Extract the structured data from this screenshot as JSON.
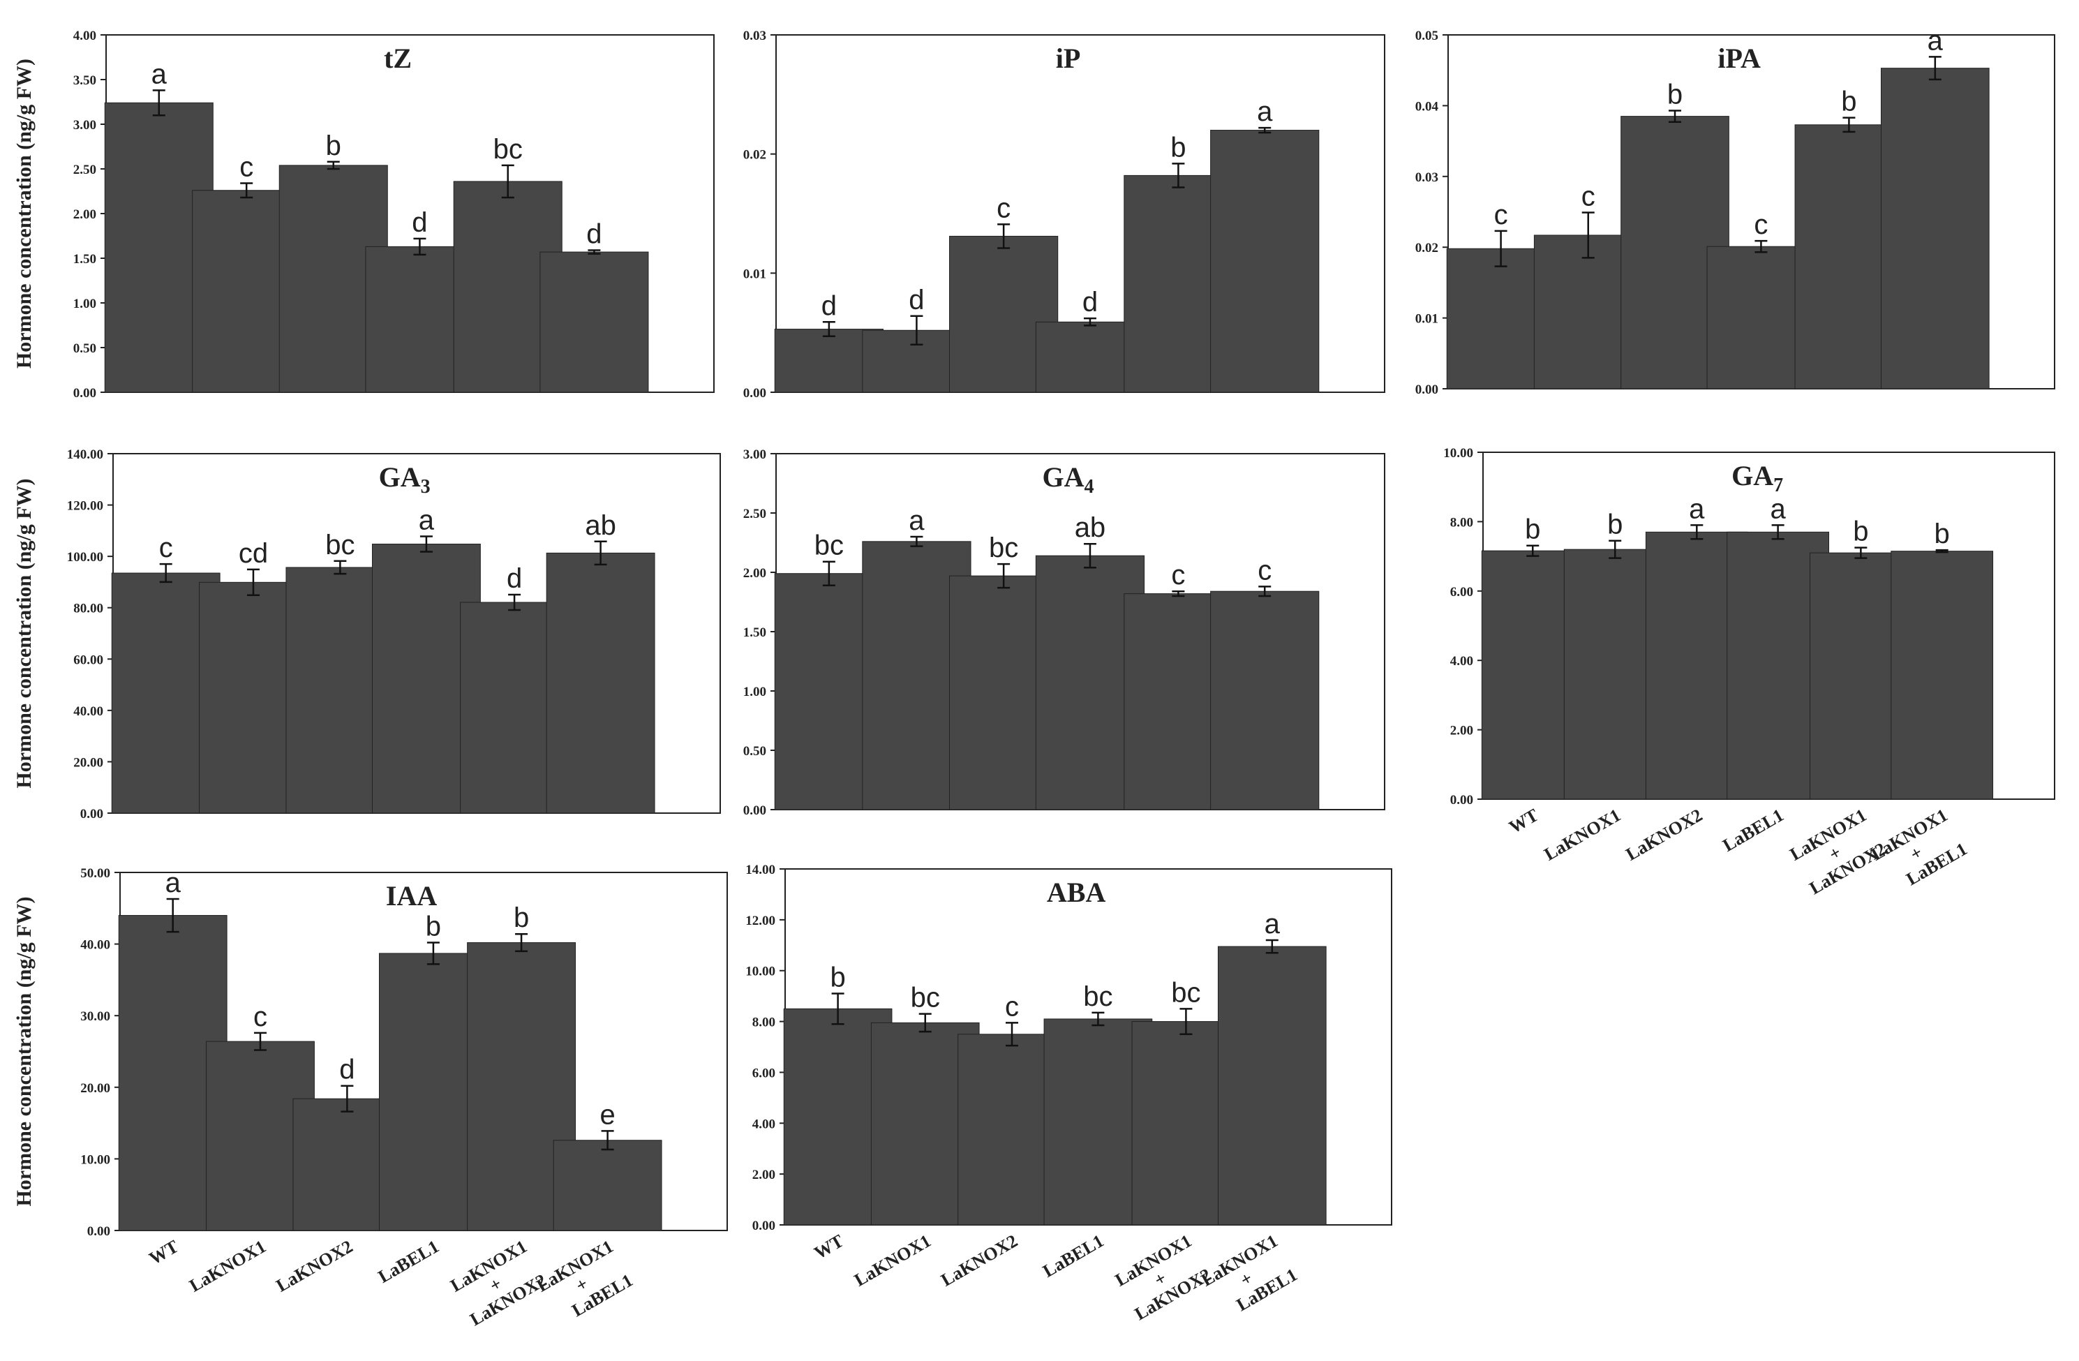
{
  "colors": {
    "bar": "#474747",
    "axis": "#222222",
    "background": "#ffffff"
  },
  "y_axis_label": "Hormone concentration (ng/g FW)",
  "categories": [
    [
      "WT"
    ],
    [
      "LaKNOX1"
    ],
    [
      "LaKNOX2"
    ],
    [
      "LaBEL1"
    ],
    [
      "LaKNOX1",
      "+",
      "LaKNOX2"
    ],
    [
      "LaKNOX1",
      "+",
      "LaBEL1"
    ]
  ],
  "chart_data": [
    {
      "type": "bar",
      "title": "tZ",
      "ylim": [
        0,
        4
      ],
      "yticks": [
        "0.00",
        "0.50",
        "1.00",
        "1.50",
        "2.00",
        "2.50",
        "3.00",
        "3.50",
        "4.00"
      ],
      "values": [
        3.24,
        2.26,
        2.54,
        1.63,
        2.36,
        1.57
      ],
      "errors": [
        0.14,
        0.08,
        0.04,
        0.09,
        0.18,
        0.02
      ],
      "letters": [
        "a",
        "c",
        "b",
        "d",
        "bc",
        "d"
      ],
      "ylabel": "Hormone concentration (ng/g FW)"
    },
    {
      "type": "bar",
      "title": "iP",
      "ylim": [
        0,
        0.03
      ],
      "yticks": [
        "0.00",
        "0.01",
        "0.02",
        "0.03"
      ],
      "values": [
        0.0053,
        0.0052,
        0.0131,
        0.0059,
        0.0182,
        0.022
      ],
      "errors": [
        0.0006,
        0.0012,
        0.001,
        0.0003,
        0.001,
        0.0002
      ],
      "letters": [
        "d",
        "d",
        "c",
        "d",
        "b",
        "a"
      ]
    },
    {
      "type": "bar",
      "title": "iPA",
      "ylim": [
        0,
        0.05
      ],
      "yticks": [
        "0.00",
        "0.01",
        "0.02",
        "0.03",
        "0.04",
        "0.05"
      ],
      "values": [
        0.0198,
        0.0217,
        0.0385,
        0.0201,
        0.0373,
        0.0453
      ],
      "errors": [
        0.0025,
        0.0032,
        0.0008,
        0.0008,
        0.001,
        0.0016
      ],
      "letters": [
        "c",
        "c",
        "b",
        "c",
        "b",
        "a"
      ]
    },
    {
      "type": "bar",
      "title": "GA3",
      "ylim": [
        0,
        140
      ],
      "yticks": [
        "0.00",
        "20.00",
        "40.00",
        "60.00",
        "80.00",
        "100.00",
        "120.00",
        "140.00"
      ],
      "values": [
        93.5,
        89.9,
        95.7,
        104.8,
        82.1,
        101.3
      ],
      "errors": [
        3.5,
        5.0,
        2.5,
        3.0,
        3.0,
        4.5
      ],
      "letters": [
        "c",
        "cd",
        "bc",
        "a",
        "d",
        "ab"
      ],
      "ylabel": "Hormone concentration (ng/g FW)"
    },
    {
      "type": "bar",
      "title": "GA4",
      "ylim": [
        0,
        3
      ],
      "yticks": [
        "0.00",
        "0.50",
        "1.00",
        "1.50",
        "2.00",
        "2.50",
        "3.00"
      ],
      "values": [
        1.99,
        2.26,
        1.97,
        2.14,
        1.82,
        1.84
      ],
      "errors": [
        0.1,
        0.04,
        0.1,
        0.1,
        0.02,
        0.04
      ],
      "letters": [
        "bc",
        "a",
        "bc",
        "ab",
        "c",
        "c"
      ]
    },
    {
      "type": "bar",
      "title": "GA7",
      "ylim": [
        0,
        10
      ],
      "yticks": [
        "0.00",
        "2.00",
        "4.00",
        "6.00",
        "8.00",
        "10.00"
      ],
      "values": [
        7.16,
        7.2,
        7.7,
        7.7,
        7.1,
        7.15
      ],
      "errors": [
        0.15,
        0.25,
        0.2,
        0.2,
        0.15,
        0.03
      ],
      "letters": [
        "b",
        "b",
        "a",
        "a",
        "b",
        "b"
      ]
    },
    {
      "type": "bar",
      "title": "IAA",
      "ylim": [
        0,
        50
      ],
      "yticks": [
        "0.00",
        "10.00",
        "20.00",
        "30.00",
        "40.00",
        "50.00"
      ],
      "values": [
        44.0,
        26.4,
        18.4,
        38.7,
        40.2,
        12.6
      ],
      "errors": [
        2.3,
        1.2,
        1.8,
        1.5,
        1.2,
        1.3
      ],
      "letters": [
        "a",
        "c",
        "d",
        "b",
        "b",
        "e"
      ],
      "ylabel": "Hormone concentration (ng/g FW)"
    },
    {
      "type": "bar",
      "title": "ABA",
      "ylim": [
        0,
        14
      ],
      "yticks": [
        "0.00",
        "2.00",
        "4.00",
        "6.00",
        "8.00",
        "10.00",
        "12.00",
        "14.00"
      ],
      "values": [
        8.5,
        7.95,
        7.5,
        8.1,
        8.0,
        10.95
      ],
      "errors": [
        0.6,
        0.35,
        0.45,
        0.25,
        0.5,
        0.25
      ],
      "letters": [
        "b",
        "bc",
        "c",
        "bc",
        "bc",
        "a"
      ]
    }
  ]
}
